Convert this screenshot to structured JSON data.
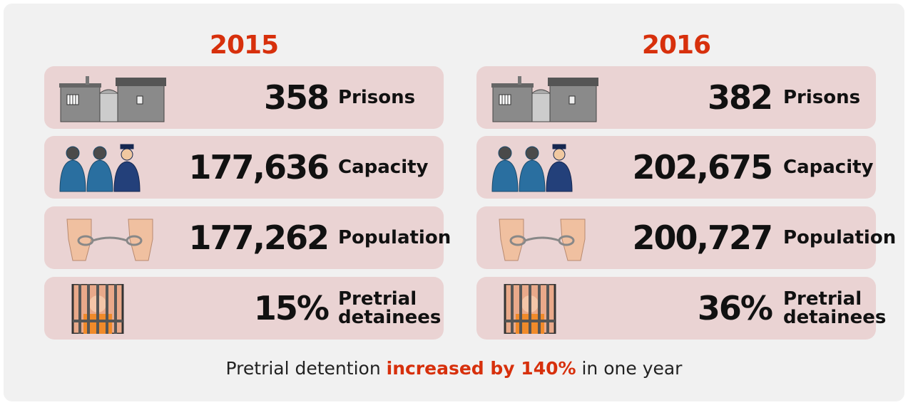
{
  "panels": [
    {
      "year": "2015",
      "rows": [
        {
          "value": "358",
          "label": "Prisons"
        },
        {
          "value": "177,636",
          "label": "Capacity"
        },
        {
          "value": "177,262",
          "label": "Population"
        },
        {
          "value": "15%",
          "label": "Pretrial detainees"
        }
      ]
    },
    {
      "year": "2016",
      "rows": [
        {
          "value": "382",
          "label": "Prisons"
        },
        {
          "value": "202,675",
          "label": "Capacity"
        },
        {
          "value": "200,727",
          "label": "Population"
        },
        {
          "value": "36%",
          "label": "Pretrial detainees"
        }
      ]
    }
  ],
  "footer": {
    "before": "Pretrial detention",
    "highlight": "increased by 140%",
    "after": "in one year"
  }
}
